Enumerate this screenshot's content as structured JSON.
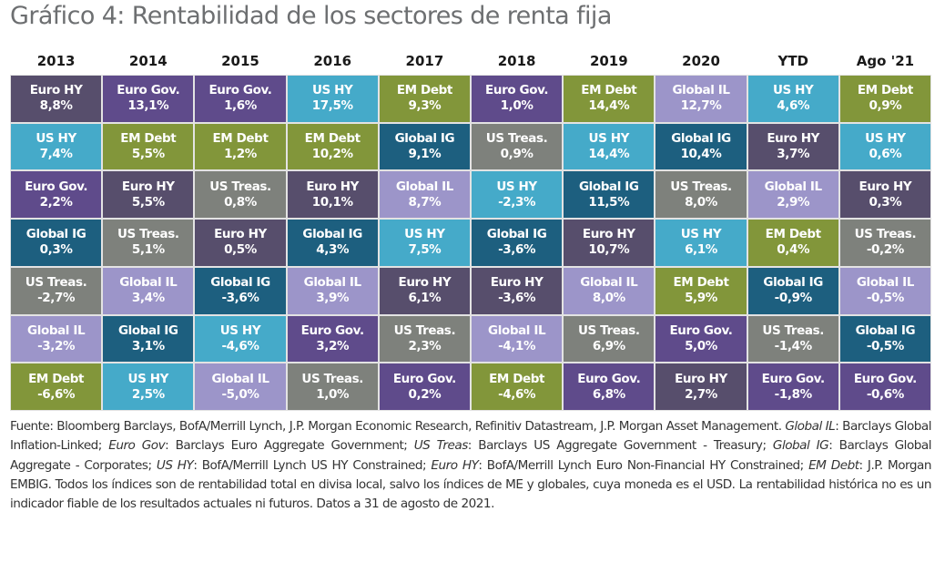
{
  "title": "Gráfico 4: Rentabilidad de los sectores de renta fija",
  "chart_data": {
    "type": "table",
    "title": "Gráfico 4: Rentabilidad de los sectores de renta fija",
    "columns": [
      "2013",
      "2014",
      "2015",
      "2016",
      "2017",
      "2018",
      "2019",
      "2020",
      "YTD",
      "Ago '21"
    ],
    "sector_colors": {
      "Euro HY": "#574e6c",
      "Euro Gov.": "#5f4b8b",
      "US HY": "#45aac9",
      "EM Debt": "#82963a",
      "Global IG": "#1d5f7f",
      "Global IL": "#9c95c9",
      "US Treas.": "#7e817c"
    },
    "ranking": [
      [
        {
          "sector": "Euro HY",
          "value": "8,8%"
        },
        {
          "sector": "US HY",
          "value": "7,4%"
        },
        {
          "sector": "Euro Gov.",
          "value": "2,2%"
        },
        {
          "sector": "Global IG",
          "value": "0,3%"
        },
        {
          "sector": "US Treas.",
          "value": "-2,7%"
        },
        {
          "sector": "Global IL",
          "value": "-3,2%"
        },
        {
          "sector": "EM Debt",
          "value": "-6,6%"
        }
      ],
      [
        {
          "sector": "Euro Gov.",
          "value": "13,1%"
        },
        {
          "sector": "EM Debt",
          "value": "5,5%"
        },
        {
          "sector": "Euro HY",
          "value": "5,5%"
        },
        {
          "sector": "US Treas.",
          "value": "5,1%"
        },
        {
          "sector": "Global IL",
          "value": "3,4%"
        },
        {
          "sector": "Global IG",
          "value": "3,1%"
        },
        {
          "sector": "US HY",
          "value": "2,5%"
        }
      ],
      [
        {
          "sector": "Euro Gov.",
          "value": "1,6%"
        },
        {
          "sector": "EM Debt",
          "value": "1,2%"
        },
        {
          "sector": "US Treas.",
          "value": "0,8%"
        },
        {
          "sector": "Euro HY",
          "value": "0,5%"
        },
        {
          "sector": "Global IG",
          "value": "-3,6%"
        },
        {
          "sector": "US HY",
          "value": "-4,6%"
        },
        {
          "sector": "Global IL",
          "value": "-5,0%"
        }
      ],
      [
        {
          "sector": "US HY",
          "value": "17,5%"
        },
        {
          "sector": "EM Debt",
          "value": "10,2%"
        },
        {
          "sector": "Euro HY",
          "value": "10,1%"
        },
        {
          "sector": "Global IG",
          "value": "4,3%"
        },
        {
          "sector": "Global IL",
          "value": "3,9%"
        },
        {
          "sector": "Euro Gov.",
          "value": "3,2%"
        },
        {
          "sector": "US Treas.",
          "value": "1,0%"
        }
      ],
      [
        {
          "sector": "EM Debt",
          "value": "9,3%"
        },
        {
          "sector": "Global IG",
          "value": "9,1%"
        },
        {
          "sector": "Global IL",
          "value": "8,7%"
        },
        {
          "sector": "US HY",
          "value": "7,5%"
        },
        {
          "sector": "Euro HY",
          "value": "6,1%"
        },
        {
          "sector": "US Treas.",
          "value": "2,3%"
        },
        {
          "sector": "Euro Gov.",
          "value": "0,2%"
        }
      ],
      [
        {
          "sector": "Euro Gov.",
          "value": "1,0%"
        },
        {
          "sector": "US Treas.",
          "value": "0,9%"
        },
        {
          "sector": "US HY",
          "value": "-2,3%"
        },
        {
          "sector": "Global IG",
          "value": "-3,6%"
        },
        {
          "sector": "Euro HY",
          "value": "-3,6%"
        },
        {
          "sector": "Global IL",
          "value": "-4,1%"
        },
        {
          "sector": "EM Debt",
          "value": "-4,6%"
        }
      ],
      [
        {
          "sector": "EM Debt",
          "value": "14,4%"
        },
        {
          "sector": "US HY",
          "value": "14,4%"
        },
        {
          "sector": "Global IG",
          "value": "11,5%"
        },
        {
          "sector": "Euro HY",
          "value": "10,7%"
        },
        {
          "sector": "Global IL",
          "value": "8,0%"
        },
        {
          "sector": "US Treas.",
          "value": "6,9%"
        },
        {
          "sector": "Euro Gov.",
          "value": "6,8%"
        }
      ],
      [
        {
          "sector": "Global IL",
          "value": "12,7%"
        },
        {
          "sector": "Global IG",
          "value": "10,4%"
        },
        {
          "sector": "US Treas.",
          "value": "8,0%"
        },
        {
          "sector": "US HY",
          "value": "6,1%"
        },
        {
          "sector": "EM Debt",
          "value": "5,9%"
        },
        {
          "sector": "Euro Gov.",
          "value": "5,0%"
        },
        {
          "sector": "Euro HY",
          "value": "2,7%"
        }
      ],
      [
        {
          "sector": "US HY",
          "value": "4,6%"
        },
        {
          "sector": "Euro HY",
          "value": "3,7%"
        },
        {
          "sector": "Global IL",
          "value": "2,9%"
        },
        {
          "sector": "EM Debt",
          "value": "0,4%"
        },
        {
          "sector": "Global IG",
          "value": "-0,9%"
        },
        {
          "sector": "US Treas.",
          "value": "-1,4%"
        },
        {
          "sector": "Euro Gov.",
          "value": "-1,8%"
        }
      ],
      [
        {
          "sector": "EM Debt",
          "value": "0,9%"
        },
        {
          "sector": "US HY",
          "value": "0,6%"
        },
        {
          "sector": "Euro HY",
          "value": "0,3%"
        },
        {
          "sector": "US Treas.",
          "value": "-0,2%"
        },
        {
          "sector": "Global IL",
          "value": "-0,5%"
        },
        {
          "sector": "Global IG",
          "value": "-0,5%"
        },
        {
          "sector": "Euro Gov.",
          "value": "-0,6%"
        }
      ]
    ]
  },
  "footnote": [
    {
      "t": "Fuente: Bloomberg Barclays, BofA/Merrill Lynch, J.P. Morgan Economic Research, Refinitiv Datastream, J.P. Morgan Asset Management. ",
      "i": false
    },
    {
      "t": "Global IL",
      "i": true
    },
    {
      "t": ": Barclays Global Inflation-Linked; ",
      "i": false
    },
    {
      "t": "Euro Gov",
      "i": true
    },
    {
      "t": ": Barclays Euro Aggregate Government; ",
      "i": false
    },
    {
      "t": "US Treas",
      "i": true
    },
    {
      "t": ": Barclays US Aggregate Government - Treasury; ",
      "i": false
    },
    {
      "t": "Global IG",
      "i": true
    },
    {
      "t": ": Barclays Global Aggregate - Corporates; ",
      "i": false
    },
    {
      "t": "US HY",
      "i": true
    },
    {
      "t": ": BofA/Merrill Lynch US HY Constrained; ",
      "i": false
    },
    {
      "t": "Euro HY",
      "i": true
    },
    {
      "t": ": BofA/Merrill Lynch Euro Non-Financial HY Constrained; ",
      "i": false
    },
    {
      "t": "EM Debt",
      "i": true
    },
    {
      "t": ": J.P. Morgan EMBIG. Todos los índices son de rentabilidad total en divisa local, salvo los índices de ME y globales, cuya moneda es el USD. La rentabilidad histórica no es un indicador fiable de los resultados actuales ni futuros. Datos a 31 de agosto de 2021.",
      "i": false
    }
  ]
}
